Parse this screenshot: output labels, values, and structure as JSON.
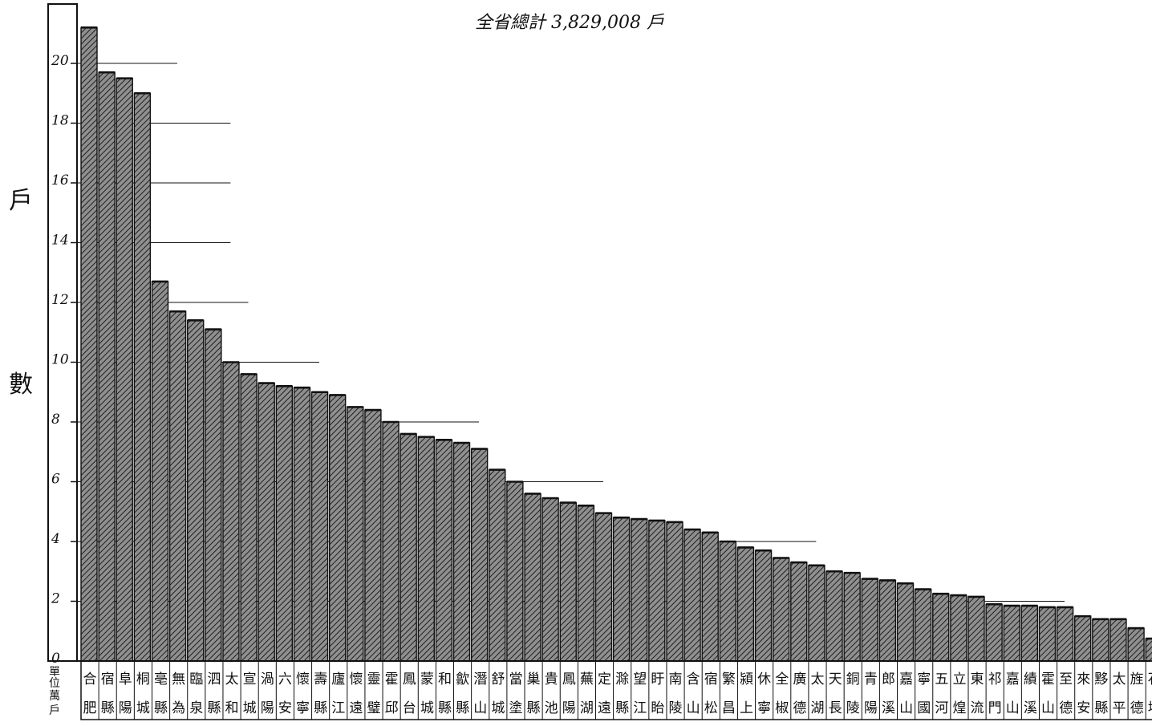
{
  "chart_data": {
    "type": "bar",
    "title": "全省總計 3,829,008 戶",
    "ylabel": "戶數",
    "unit_label": "單位萬戶",
    "ylim": [
      0,
      21.6
    ],
    "yticks": [
      0,
      2,
      4,
      6,
      8,
      10,
      12,
      14,
      16,
      18,
      20
    ],
    "grid": false,
    "colors": {
      "bar_fill": "#8a8a8a",
      "bar_hatch": "#2a2a2a",
      "ink": "#111111"
    },
    "categories": [
      [
        "合",
        "肥"
      ],
      [
        "宿",
        "縣"
      ],
      [
        "阜",
        "陽"
      ],
      [
        "桐",
        "城"
      ],
      [
        "亳",
        "縣"
      ],
      [
        "無",
        "為"
      ],
      [
        "臨",
        "泉"
      ],
      [
        "泗",
        "縣"
      ],
      [
        "太",
        "和"
      ],
      [
        "宣",
        "城"
      ],
      [
        "渦",
        "陽"
      ],
      [
        "六",
        "安"
      ],
      [
        "懷",
        "寧"
      ],
      [
        "壽",
        "縣"
      ],
      [
        "廬",
        "江"
      ],
      [
        "懷",
        "遠"
      ],
      [
        "靈",
        "璧"
      ],
      [
        "霍",
        "邱"
      ],
      [
        "鳳",
        "台"
      ],
      [
        "蒙",
        "城"
      ],
      [
        "和",
        "縣"
      ],
      [
        "歙",
        "縣"
      ],
      [
        "潛",
        "山"
      ],
      [
        "舒",
        "城"
      ],
      [
        "當",
        "塗"
      ],
      [
        "巢",
        "縣"
      ],
      [
        "貴",
        "池"
      ],
      [
        "鳳",
        "陽"
      ],
      [
        "蕪",
        "湖"
      ],
      [
        "定",
        "遠"
      ],
      [
        "滁",
        "縣"
      ],
      [
        "望",
        "江"
      ],
      [
        "盱",
        "眙"
      ],
      [
        "南",
        "陵"
      ],
      [
        "含",
        "山"
      ],
      [
        "宿",
        "松"
      ],
      [
        "繁",
        "昌"
      ],
      [
        "潁",
        "上"
      ],
      [
        "休",
        "寧"
      ],
      [
        "全",
        "椒"
      ],
      [
        "廣",
        "德"
      ],
      [
        "太",
        "湖"
      ],
      [
        "天",
        "長"
      ],
      [
        "銅",
        "陵"
      ],
      [
        "青",
        "陽"
      ],
      [
        "郎",
        "溪"
      ],
      [
        "嘉",
        "山"
      ],
      [
        "寧",
        "國"
      ],
      [
        "五",
        "河"
      ],
      [
        "立",
        "煌"
      ],
      [
        "東",
        "流"
      ],
      [
        "祁",
        "門"
      ],
      [
        "嘉",
        "山"
      ],
      [
        "績",
        "溪"
      ],
      [
        "霍",
        "山"
      ],
      [
        "至",
        "德"
      ],
      [
        "來",
        "安"
      ],
      [
        "黟",
        "縣"
      ],
      [
        "太",
        "平"
      ],
      [
        "旌",
        "德"
      ],
      [
        "石",
        "埭"
      ]
    ],
    "values": [
      21.2,
      19.7,
      19.5,
      19.0,
      12.7,
      11.7,
      11.4,
      11.1,
      10.0,
      9.6,
      9.3,
      9.2,
      9.15,
      9.0,
      8.9,
      8.5,
      8.4,
      8.0,
      7.6,
      7.5,
      7.4,
      7.3,
      7.1,
      6.4,
      6.0,
      5.6,
      5.45,
      5.3,
      5.2,
      4.95,
      4.8,
      4.75,
      4.7,
      4.65,
      4.4,
      4.3,
      4.0,
      3.8,
      3.7,
      3.45,
      3.3,
      3.2,
      3.0,
      2.95,
      2.75,
      2.7,
      2.6,
      2.4,
      2.25,
      2.2,
      2.15,
      1.9,
      1.85,
      1.85,
      1.8,
      1.8,
      1.5,
      1.4,
      1.4,
      1.1,
      0.75
    ],
    "reference_lines": [
      20,
      18,
      16,
      14,
      12,
      10,
      8,
      6,
      4,
      2
    ]
  }
}
